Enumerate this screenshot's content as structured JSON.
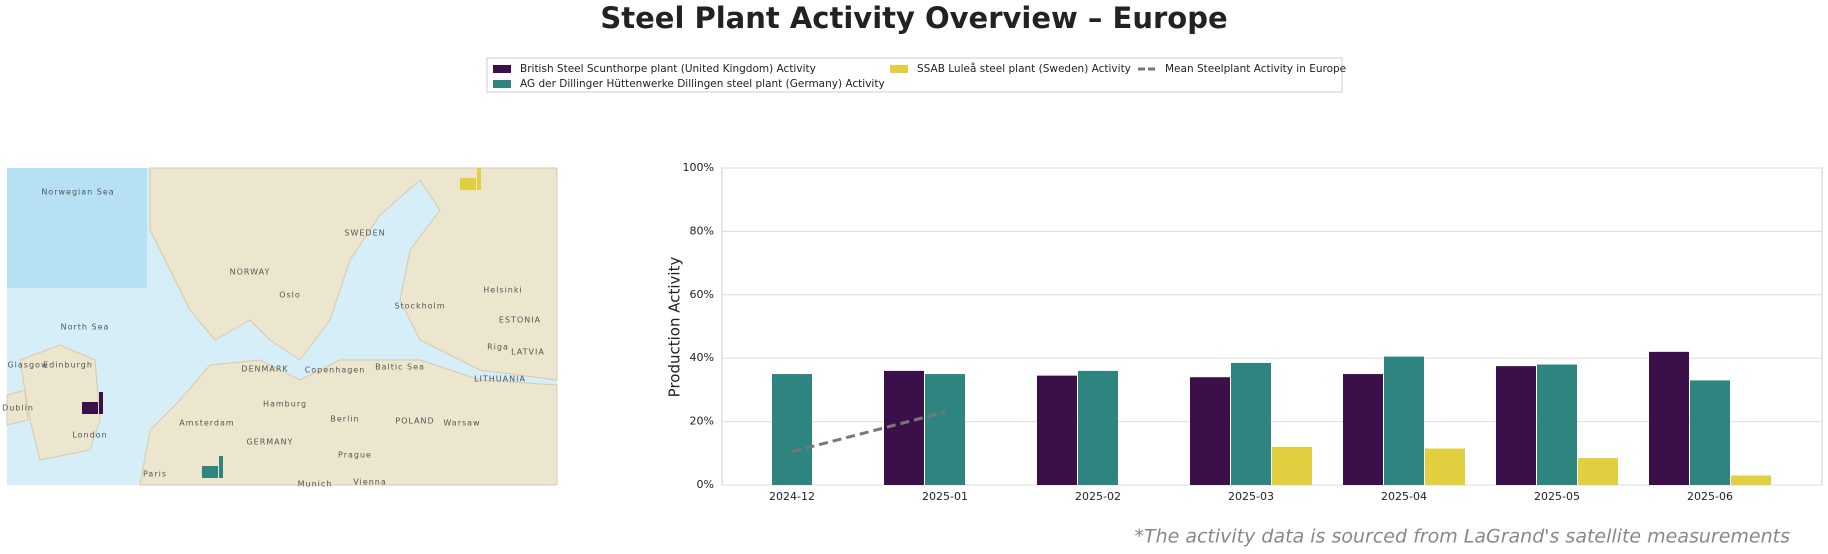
{
  "chart_data": {
    "type": "bar",
    "title": "Steel Plant Activity Overview – Europe",
    "ylabel": "Production Activity",
    "footnote": "*The activity data is sourced from LaGrand's satellite measurements",
    "categories": [
      "2024-12",
      "2025-01",
      "2025-02",
      "2025-03",
      "2025-04",
      "2025-05",
      "2025-06"
    ],
    "series": [
      {
        "name": "British Steel Scunthorpe plant (United Kingdom) Activity",
        "color": "#3b0f4a",
        "values": [
          null,
          36,
          34.5,
          34,
          35,
          37.5,
          42
        ]
      },
      {
        "name": "AG der Dillinger Hüttenwerke Dillingen steel plant (Germany) Activity",
        "color": "#2e8580",
        "values": [
          35,
          35,
          36,
          38.5,
          40.5,
          38,
          33
        ]
      },
      {
        "name": "SSAB Luleå steel plant (Sweden) Activity",
        "color": "#e2cf3f",
        "values": [
          null,
          null,
          null,
          12,
          11.5,
          8.5,
          3
        ]
      }
    ],
    "lines": [
      {
        "name": "Mean Steelplant Activity in Europe",
        "color": "#777777",
        "values": [
          10.5,
          23,
          null,
          null,
          null,
          null,
          null
        ]
      }
    ],
    "ylim": [
      0,
      100
    ],
    "yticks": [
      {
        "value": 0,
        "label": "0%"
      },
      {
        "value": 20,
        "label": "20%"
      },
      {
        "value": 40,
        "label": "40%"
      },
      {
        "value": 60,
        "label": "60%"
      },
      {
        "value": 80,
        "label": "80%"
      },
      {
        "value": 100,
        "label": "100%"
      }
    ],
    "grid": true,
    "map_labels": [
      "Norwegian Sea",
      "SWEDEN",
      "NORWAY",
      "North Sea",
      "DENMARK",
      "GERMANY",
      "POLAND",
      "LATVIA",
      "ESTONIA",
      "LITHUANIA",
      "Oslo",
      "Stockholm",
      "Helsinki",
      "Riga",
      "Copenhagen",
      "Hamburg",
      "Berlin",
      "Amsterdam",
      "London",
      "Paris",
      "Prague",
      "Warsaw",
      "Baltic Sea",
      "Dublin",
      "Glasgow",
      "Edinburgh",
      "Munich",
      "Vienna"
    ]
  }
}
